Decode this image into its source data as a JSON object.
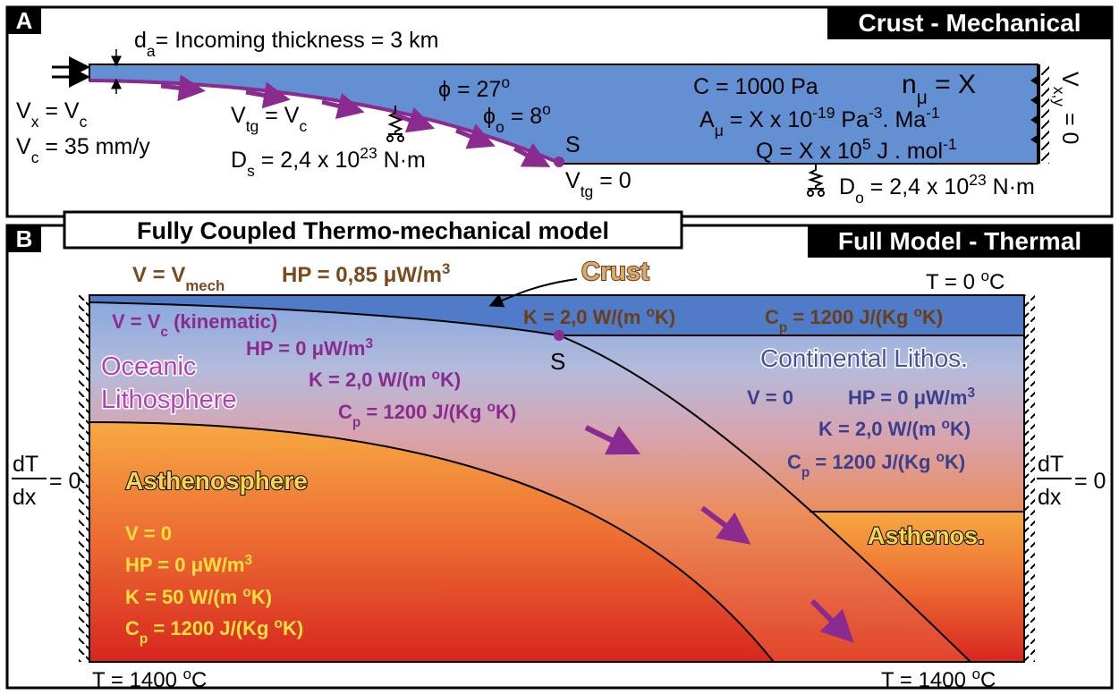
{
  "panel_a": {
    "letter": "A",
    "title": "Crust - Mechanical",
    "thickness": [
      "d",
      "a",
      "= Incoming thickness = 3 km"
    ],
    "vx": [
      "V",
      "x",
      " = V",
      "c"
    ],
    "vc": [
      "V",
      "c",
      " = 35 mm/y"
    ],
    "vtg_c": [
      "V",
      "tg",
      " = V",
      "c"
    ],
    "ds": [
      "D",
      "s",
      " = 2,4 x 10",
      "23",
      " N·m"
    ],
    "phi": [
      "ϕ = 27",
      "o"
    ],
    "phi_o": [
      "ϕ",
      "o",
      " = 8",
      "o"
    ],
    "s": "S",
    "vtg0": [
      "V",
      "tg",
      " = 0"
    ],
    "c": "C = 1000 Pa",
    "n": [
      "n",
      "μ",
      " = X"
    ],
    "a": [
      "A",
      "μ",
      " = X x 10",
      "-19",
      " Pa",
      "-3",
      ". Ma",
      "-1"
    ],
    "q": [
      "Q = X x 10",
      "5",
      " J . mol",
      "-1"
    ],
    "d_o": [
      "D",
      "o",
      " = 2,4 x 10",
      "23",
      " N·m"
    ],
    "vxy": [
      "V",
      "x,y",
      " = 0"
    ]
  },
  "panel_b": {
    "letter": "B",
    "title": "Fully Coupled Thermo-mechanical model",
    "subtitle": "Full Model - Thermal",
    "v_mech": [
      "V = V",
      "mech"
    ],
    "hp_crust": [
      "HP = 0,85 μW/m",
      "3"
    ],
    "crust": "Crust",
    "t_top": [
      "T = 0 ",
      "o",
      "C"
    ],
    "k_crust": [
      "K = 2,0 W/(m ",
      "o",
      "K)"
    ],
    "cp_crust": [
      "C",
      "p",
      " = 1200  J/(Kg ",
      "o",
      "K)"
    ],
    "s": "S",
    "oceanic": {
      "name": [
        "Oceanic",
        "Lithosphere"
      ],
      "v": [
        "V = V",
        "c",
        " (kinematic)"
      ],
      "hp": [
        "HP = 0  μW/m",
        "3"
      ],
      "k": [
        "K = 2,0 W/(m ",
        "o",
        "K)"
      ],
      "cp": [
        "C",
        "p",
        " = 1200  J/(Kg ",
        "o",
        "K)"
      ]
    },
    "continental": {
      "name": "Continental Lithos.",
      "v": "V = 0",
      "hp": [
        "HP = 0 μW/m",
        "3"
      ],
      "k": [
        "K = 2,0 W/(m ",
        "o",
        "K)"
      ],
      "cp": [
        "C",
        "p",
        " = 1200  J/(Kg ",
        "o",
        "K)"
      ]
    },
    "asthenosphere": {
      "name": "Asthenosphere",
      "v": "V = 0",
      "hp": [
        "HP = 0 μW/m",
        "3"
      ],
      "k": [
        "K = 50 W/(m ",
        "o",
        "K)"
      ],
      "cp": [
        "C",
        "p",
        " = 1200  J/(Kg ",
        "o",
        "K)"
      ]
    },
    "asthenos": "Asthenos.",
    "bc": [
      "dT",
      "dx",
      "= 0"
    ],
    "t_bottom": [
      "T = 1400 ",
      "o",
      "C"
    ]
  }
}
